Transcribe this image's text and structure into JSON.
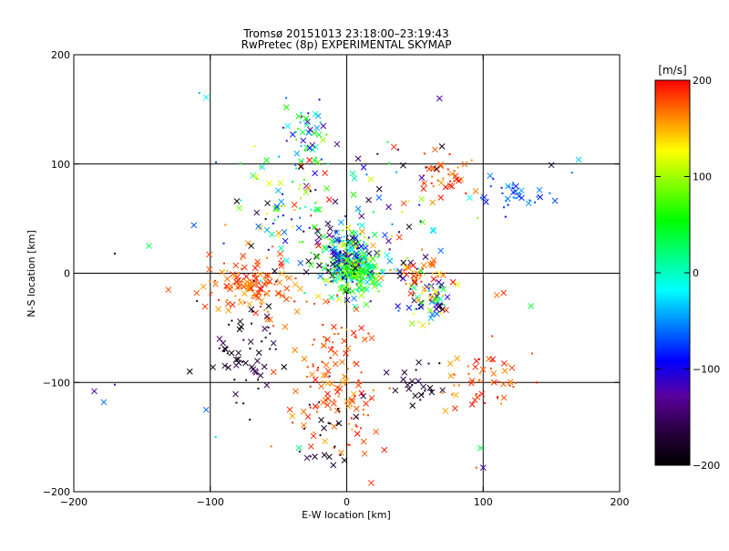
{
  "chart_data": {
    "type": "scatter",
    "title": "Tromsø 20151013 23:18:00–23:19:43",
    "subtitle": "RwPretec (8p) EXPERIMENTAL SKYMAP",
    "xlabel": "E-W location [km]",
    "ylabel": "N-S location [km]",
    "xlim": [
      -200,
      200
    ],
    "ylim": [
      -200,
      200
    ],
    "xticks": [
      -200,
      -100,
      0,
      100,
      200
    ],
    "yticks": [
      -200,
      -100,
      0,
      100,
      200
    ],
    "grid": true,
    "markers": [
      "x",
      "dot"
    ],
    "colorbar": {
      "label": "[m/s]",
      "min": -200,
      "max": 200,
      "ticks": [
        200,
        100,
        0,
        -100,
        -200
      ],
      "colors": [
        "#000000",
        "#2a0040",
        "#5a00a0",
        "#0000ff",
        "#0080ff",
        "#00ffff",
        "#00ff80",
        "#00ff00",
        "#80ff00",
        "#ffff00",
        "#ff8000",
        "#ff0000"
      ]
    },
    "clusters": [
      {
        "x": 0,
        "y": 10,
        "sx": 10,
        "sy": 14,
        "n": 260,
        "v": [
          -200,
          150
        ]
      },
      {
        "x": 10,
        "y": 0,
        "sx": 8,
        "sy": 10,
        "n": 120,
        "v": [
          -30,
          120
        ]
      },
      {
        "x": -70,
        "y": -10,
        "sx": 16,
        "sy": 12,
        "n": 120,
        "v": [
          150,
          200
        ]
      },
      {
        "x": -30,
        "y": 130,
        "sx": 8,
        "sy": 15,
        "n": 45,
        "v": [
          -150,
          100
        ]
      },
      {
        "x": 60,
        "y": -25,
        "sx": 8,
        "sy": 12,
        "n": 70,
        "v": [
          -200,
          200
        ]
      },
      {
        "x": 50,
        "y": 0,
        "sx": 10,
        "sy": 6,
        "n": 40,
        "v": [
          150,
          200
        ]
      },
      {
        "x": 70,
        "y": 90,
        "sx": 12,
        "sy": 12,
        "n": 40,
        "v": [
          150,
          200
        ]
      },
      {
        "x": 120,
        "y": 72,
        "sx": 14,
        "sy": 8,
        "n": 35,
        "v": [
          -90,
          -40
        ]
      },
      {
        "x": 100,
        "y": -95,
        "sx": 14,
        "sy": 15,
        "n": 55,
        "v": [
          150,
          200
        ]
      },
      {
        "x": -10,
        "y": -95,
        "sx": 20,
        "sy": 35,
        "n": 140,
        "v": [
          150,
          200
        ]
      },
      {
        "x": -75,
        "y": -75,
        "sx": 14,
        "sy": 25,
        "n": 60,
        "v": [
          -200,
          -150
        ]
      },
      {
        "x": 55,
        "y": -100,
        "sx": 10,
        "sy": 10,
        "n": 25,
        "v": [
          -200,
          -150
        ]
      },
      {
        "x": -15,
        "y": -150,
        "sx": 12,
        "sy": 25,
        "n": 25,
        "v": [
          -200,
          -150
        ]
      },
      {
        "x": -40,
        "y": 55,
        "sx": 22,
        "sy": 30,
        "n": 110,
        "v": [
          -200,
          200
        ]
      },
      {
        "x": 20,
        "y": 30,
        "sx": 25,
        "sy": 20,
        "n": 60,
        "v": [
          -200,
          200
        ]
      },
      {
        "x": 20,
        "y": 90,
        "sx": 30,
        "sy": 20,
        "n": 25,
        "v": [
          -200,
          200
        ]
      }
    ],
    "scattered": [
      {
        "x": -185,
        "y": -108,
        "v": -120
      },
      {
        "x": -178,
        "y": -118,
        "v": -60
      },
      {
        "x": -170,
        "y": -102,
        "v": -100
      },
      {
        "x": -145,
        "y": 25,
        "v": 30
      },
      {
        "x": -112,
        "y": 44,
        "v": -70
      },
      {
        "x": -108,
        "y": 165,
        "v": -40
      },
      {
        "x": -103,
        "y": 161,
        "v": -20
      },
      {
        "x": -103,
        "y": -125,
        "v": -60
      },
      {
        "x": -96,
        "y": -150,
        "v": -30
      },
      {
        "x": -110,
        "y": -18,
        "v": 180
      },
      {
        "x": -115,
        "y": -90,
        "v": -200
      },
      {
        "x": -170,
        "y": 18,
        "v": -200
      },
      {
        "x": 68,
        "y": 160,
        "v": -120
      },
      {
        "x": 170,
        "y": 104,
        "v": -30
      },
      {
        "x": 165,
        "y": 92,
        "v": -60
      },
      {
        "x": 150,
        "y": 99,
        "v": -180
      },
      {
        "x": 135,
        "y": -30,
        "v": 40
      },
      {
        "x": 95,
        "y": -178,
        "v": 180
      },
      {
        "x": 100,
        "y": -178,
        "v": -120
      },
      {
        "x": 98,
        "y": -160,
        "v": 30
      },
      {
        "x": -100,
        "y": -20,
        "v": 200
      },
      {
        "x": 115,
        "y": -18,
        "v": 190
      },
      {
        "x": 110,
        "y": -20,
        "v": 170
      },
      {
        "x": 30,
        "y": 120,
        "v": 30
      },
      {
        "x": -35,
        "y": -160,
        "v": 20
      },
      {
        "x": -70,
        "y": 25,
        "v": -200
      }
    ]
  }
}
